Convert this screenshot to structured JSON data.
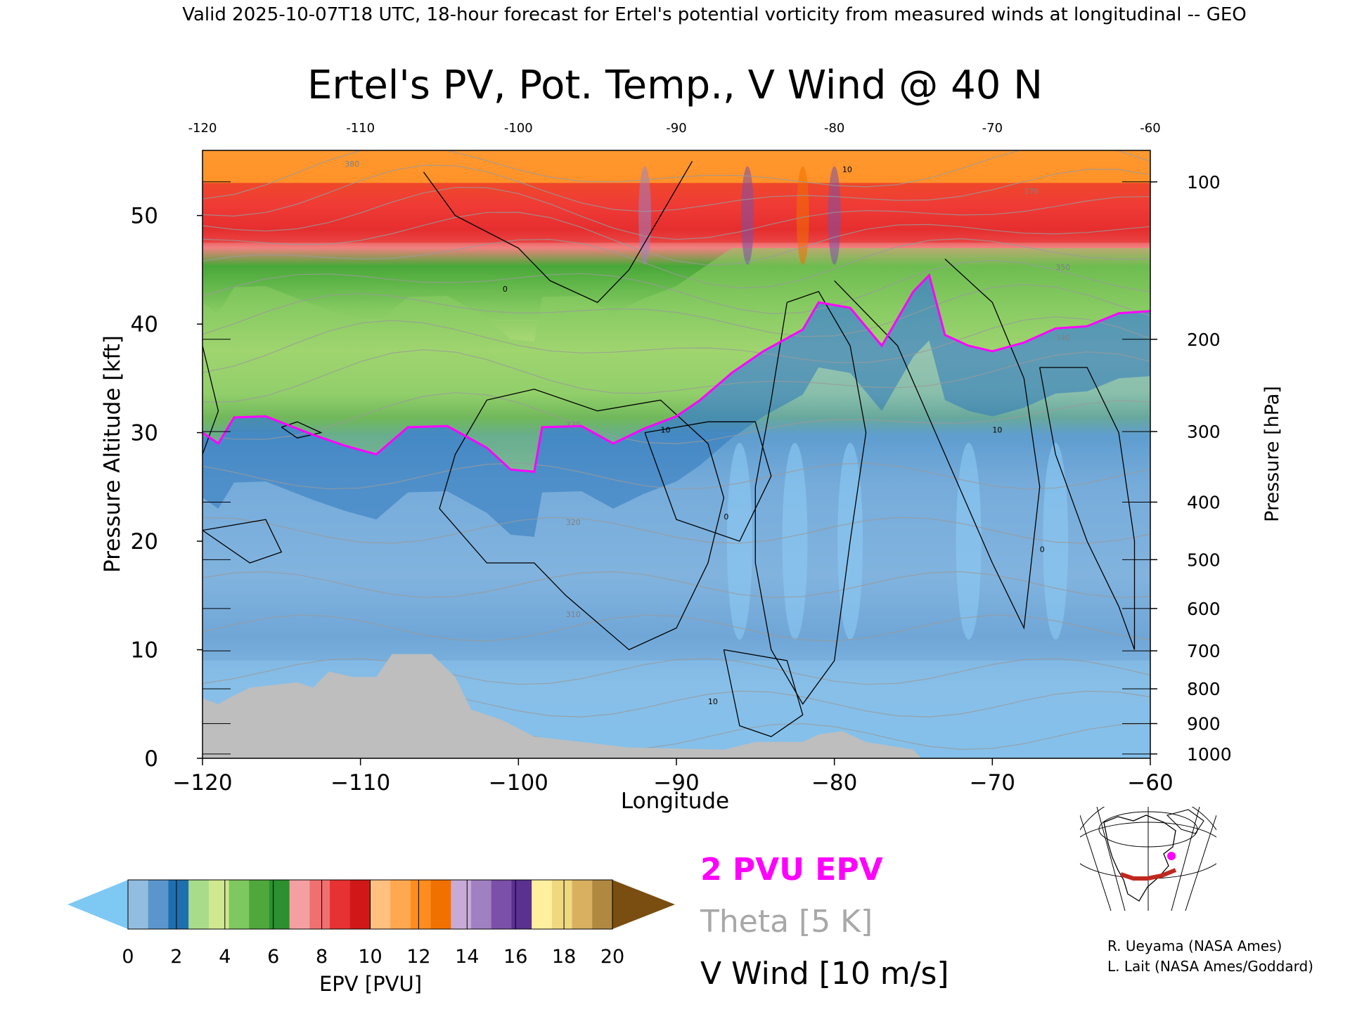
{
  "chart_data": {
    "type": "heatmap",
    "header": "Valid 2025-10-07T18 UTC, 18-hour forecast for Ertel's potential vorticity from measured winds at longitudinal -- GEO",
    "title": "Ertel's PV, Pot. Temp., V Wind @ 40 N",
    "xlabel": "Longitude",
    "ylabel": "Pressure Altitude [kft]",
    "y2label": "Pressure [hPa]",
    "xlim": [
      -120,
      -60
    ],
    "ylim": [
      0,
      56
    ],
    "x_ticks": [
      -120,
      -110,
      -100,
      -90,
      -80,
      -70,
      -60
    ],
    "x_tick_labels": [
      "−120",
      "−110",
      "−100",
      "−90",
      "−80",
      "−70",
      "−60"
    ],
    "x_top_tick_labels": [
      "-120",
      "-110",
      "-100",
      "-90",
      "-80",
      "-70",
      "-60"
    ],
    "y_ticks": [
      0,
      10,
      20,
      30,
      40,
      50
    ],
    "y_tick_labels": [
      "0",
      "10",
      "20",
      "30",
      "40",
      "50"
    ],
    "pressure_ticks": [
      {
        "hpa": 100,
        "kft": 53.1,
        "label": "100"
      },
      {
        "hpa": 200,
        "kft": 38.6,
        "label": "200"
      },
      {
        "hpa": 300,
        "kft": 30.1,
        "label": "300"
      },
      {
        "hpa": 400,
        "kft": 23.6,
        "label": "400"
      },
      {
        "hpa": 500,
        "kft": 18.3,
        "label": "500"
      },
      {
        "hpa": 600,
        "kft": 13.8,
        "label": "600"
      },
      {
        "hpa": 700,
        "kft": 9.9,
        "label": "700"
      },
      {
        "hpa": 800,
        "kft": 6.4,
        "label": "800"
      },
      {
        "hpa": 900,
        "kft": 3.2,
        "label": "900"
      },
      {
        "hpa": 1000,
        "kft": 0.4,
        "label": "1000"
      }
    ],
    "colorbar": {
      "label": "EPV [PVU]",
      "ticks": [
        0,
        2,
        4,
        6,
        8,
        10,
        12,
        14,
        16,
        18,
        20
      ],
      "tick_labels": [
        "0",
        "2",
        "4",
        "6",
        "8",
        "10",
        "12",
        "14",
        "16",
        "18",
        "20"
      ],
      "under_color": "#7ec8f4",
      "over_color": "#7a4d10",
      "colors": [
        "#92bde0",
        "#5a96cc",
        "#1e6fb0",
        "#a8dc8a",
        "#d0e890",
        "#7ec860",
        "#4ea83c",
        "#2a9030",
        "#f5a0a0",
        "#f07070",
        "#e63232",
        "#d01818",
        "#ffc080",
        "#ffa850",
        "#ff8c1e",
        "#f07000",
        "#c8aad8",
        "#a080c0",
        "#7a50a8",
        "#5a3090",
        "#fff0a0",
        "#f0d880",
        "#d8b060",
        "#b08840"
      ]
    },
    "legend": [
      {
        "text": "2 PVU EPV",
        "color": "#ff00ff"
      },
      {
        "text": "Theta [5 K]",
        "color": "#a8a8a8"
      },
      {
        "text": "V Wind [10 m/s]",
        "color": "#000000"
      }
    ],
    "epv_2pvu_contour": [
      [
        -120,
        30.0
      ],
      [
        -119.0,
        29.0
      ],
      [
        -118.0,
        31.4
      ],
      [
        -116.0,
        31.5
      ],
      [
        -113.0,
        29.8
      ],
      [
        -111.0,
        28.8
      ],
      [
        -109.0,
        28.0
      ],
      [
        -107.0,
        30.5
      ],
      [
        -104.5,
        30.6
      ],
      [
        -102.0,
        28.6
      ],
      [
        -100.5,
        26.6
      ],
      [
        -99.0,
        26.4
      ],
      [
        -98.5,
        30.5
      ],
      [
        -96.0,
        30.6
      ],
      [
        -94.0,
        29.0
      ],
      [
        -92.0,
        30.4
      ],
      [
        -90.0,
        31.5
      ],
      [
        -88.5,
        33.0
      ],
      [
        -86.5,
        35.5
      ],
      [
        -84.5,
        37.5
      ],
      [
        -82.0,
        39.5
      ],
      [
        -81.0,
        42.0
      ],
      [
        -79.0,
        41.5
      ],
      [
        -77.0,
        38.0
      ],
      [
        -75.0,
        43.0
      ],
      [
        -74.0,
        44.5
      ],
      [
        -73.0,
        39.0
      ],
      [
        -71.5,
        38.0
      ],
      [
        -70.0,
        37.5
      ],
      [
        -68.0,
        38.3
      ],
      [
        -66.0,
        39.6
      ],
      [
        -64.0,
        39.8
      ],
      [
        -62.0,
        41.0
      ],
      [
        -60.0,
        41.2
      ]
    ],
    "theta_labels": [
      "380",
      "370",
      "350",
      "340",
      "330",
      "320",
      "310"
    ],
    "vwind_labels": [
      "0",
      "10",
      "0",
      "10",
      "10",
      "0",
      "10"
    ],
    "map_series_name": "40 N",
    "credits": [
      "R. Ueyama (NASA Ames)",
      "L. Lait (NASA Ames/Goddard)"
    ]
  }
}
